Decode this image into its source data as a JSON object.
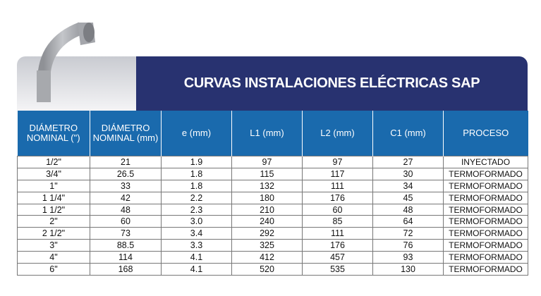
{
  "title": "CURVAS INSTALACIONES ELÉCTRICAS SAP",
  "columns": [
    "DIÁMETRO NOMINAL (\")",
    "DIÁMETRO NOMINAL (mm)",
    "e (mm)",
    "L1 (mm)",
    "L2 (mm)",
    "C1 (mm)",
    "PROCESO"
  ],
  "rows": [
    [
      "1/2\"",
      "21",
      "1.9",
      "97",
      "97",
      "27",
      "INYECTADO"
    ],
    [
      "3/4\"",
      "26.5",
      "1.8",
      "115",
      "117",
      "30",
      "TERMOFORMADO"
    ],
    [
      "1\"",
      "33",
      "1.8",
      "132",
      "111",
      "34",
      "TERMOFORMADO"
    ],
    [
      "1 1/4\"",
      "42",
      "2.2",
      "180",
      "176",
      "45",
      "TERMOFORMADO"
    ],
    [
      "1 1/2\"",
      "48",
      "2.3",
      "210",
      "60",
      "48",
      "TERMOFORMADO"
    ],
    [
      "2\"",
      "60",
      "3.0",
      "240",
      "85",
      "64",
      "TERMOFORMADO"
    ],
    [
      "2 1/2\"",
      "73",
      "3.4",
      "292",
      "111",
      "72",
      "TERMOFORMADO"
    ],
    [
      "3\"",
      "88.5",
      "3.3",
      "325",
      "176",
      "76",
      "TERMOFORMADO"
    ],
    [
      "4\"",
      "114",
      "4.1",
      "412",
      "457",
      "93",
      "TERMOFORMADO"
    ],
    [
      "6\"",
      "168",
      "4.1",
      "520",
      "535",
      "130",
      "TERMOFORMADO"
    ]
  ],
  "colors": {
    "navy": "#283270",
    "header_blue": "#1a6aad"
  }
}
